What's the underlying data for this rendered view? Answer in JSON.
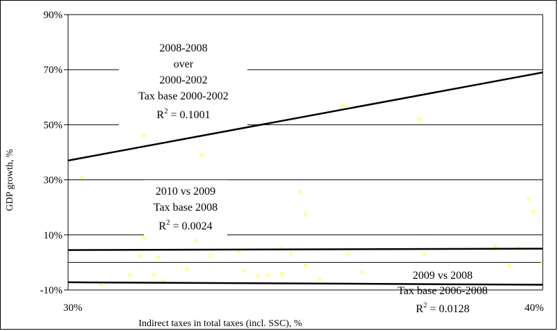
{
  "chart_data": {
    "type": "scatter",
    "title": "",
    "xlabel": "Indirect taxes in total taxes (incl. SSC), %",
    "ylabel": "GDP growth, %",
    "xlim": [
      30,
      40
    ],
    "ylim": [
      -10,
      90
    ],
    "y_ticks": [
      "-10%",
      "10%",
      "30%",
      "50%",
      "70%",
      "90%"
    ],
    "x_ticks": [
      "30%",
      "40%"
    ],
    "grid": "horizontal",
    "series": [
      {
        "period": "2008-2008 over 2000-2002",
        "color": "#ffff99",
        "points": [
          [
            31.6,
            46
          ],
          [
            32.8,
            39
          ],
          [
            34.9,
            25.5
          ],
          [
            35.0,
            17.5
          ],
          [
            37.4,
            52
          ],
          [
            31.9,
            28
          ],
          [
            30.3,
            31
          ],
          [
            39.7,
            23
          ],
          [
            39.8,
            18.5
          ],
          [
            35.8,
            57
          ]
        ],
        "trend": {
          "x": [
            30,
            40
          ],
          "y": [
            37,
            69
          ]
        }
      },
      {
        "period": "2010 vs 2009",
        "color": "#ffff99",
        "points": [
          [
            31.9,
            2
          ],
          [
            32.7,
            8
          ],
          [
            33.6,
            4
          ],
          [
            34.5,
            5
          ],
          [
            33.0,
            2.5
          ],
          [
            31.5,
            2.5
          ],
          [
            37.5,
            3
          ],
          [
            39.0,
            6
          ],
          [
            39.5,
            5
          ],
          [
            35.9,
            3
          ],
          [
            31.6,
            9
          ],
          [
            34.7,
            3
          ]
        ],
        "trend": {
          "x": [
            30,
            40
          ],
          "y": [
            4.5,
            5.0
          ]
        }
      },
      {
        "period": "2009 vs 2008",
        "color": "#ffff99",
        "points": [
          [
            30.7,
            -8
          ],
          [
            31.3,
            -4.5
          ],
          [
            31.8,
            -4.5
          ],
          [
            32.5,
            -2.5
          ],
          [
            33.7,
            -3
          ],
          [
            34.5,
            -4
          ],
          [
            34.0,
            -5
          ],
          [
            35.3,
            -6
          ],
          [
            35.0,
            -1
          ],
          [
            34.2,
            -4.5
          ],
          [
            32.0,
            -7
          ],
          [
            39.3,
            -1
          ],
          [
            40.0,
            0
          ],
          [
            36.2,
            -3.5
          ],
          [
            38.3,
            -4
          ]
        ],
        "trend": {
          "x": [
            30,
            40
          ],
          "y": [
            -7.2,
            -8.1
          ]
        }
      }
    ],
    "annotations": [
      {
        "lines": [
          "2008-2008",
          "over",
          "2000-2002",
          "Tax base 2000-2002"
        ],
        "r2_label": "R",
        "r2_exp": "2",
        "r2_value": " = 0.1001"
      },
      {
        "lines": [
          "2010 vs 2009",
          "Tax base 2008"
        ],
        "r2_label": "R",
        "r2_exp": "2",
        "r2_value": " = 0.0024"
      },
      {
        "lines": [
          "2009 vs 2008",
          "Tax base 2006-2008"
        ],
        "r2_label": "R",
        "r2_exp": "2",
        "r2_value": " = 0.0128"
      }
    ]
  }
}
